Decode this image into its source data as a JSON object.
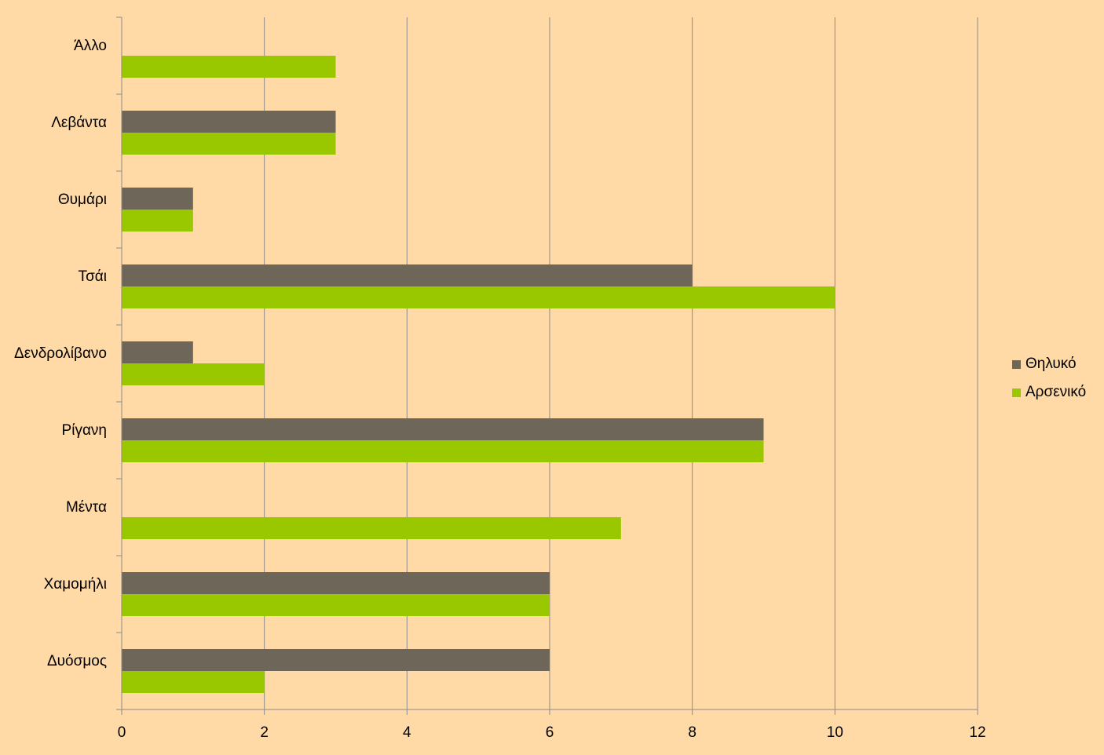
{
  "chart_data": {
    "type": "bar",
    "orientation": "horizontal",
    "categories": [
      "Δυόσμος",
      "Χαμομήλι",
      "Μέντα",
      "Ρίγανη",
      "Δενδρολίβανο",
      "Τσάι",
      "Θυμάρι",
      "Λεβάντα",
      "Άλλο"
    ],
    "series": [
      {
        "name": "Θηλυκό",
        "color": "#6E6658",
        "values": [
          6,
          6,
          0,
          9,
          1,
          8,
          1,
          3,
          0
        ]
      },
      {
        "name": "Αρσενικό",
        "color": "#99C800",
        "values": [
          2,
          6,
          7,
          9,
          2,
          10,
          1,
          3,
          3
        ]
      }
    ],
    "xlim": [
      0,
      12
    ],
    "xticks": [
      "0",
      "2",
      "4",
      "6",
      "8",
      "10",
      "12"
    ],
    "grid": true,
    "legend_position": "right",
    "background": "#FFD9A6"
  }
}
